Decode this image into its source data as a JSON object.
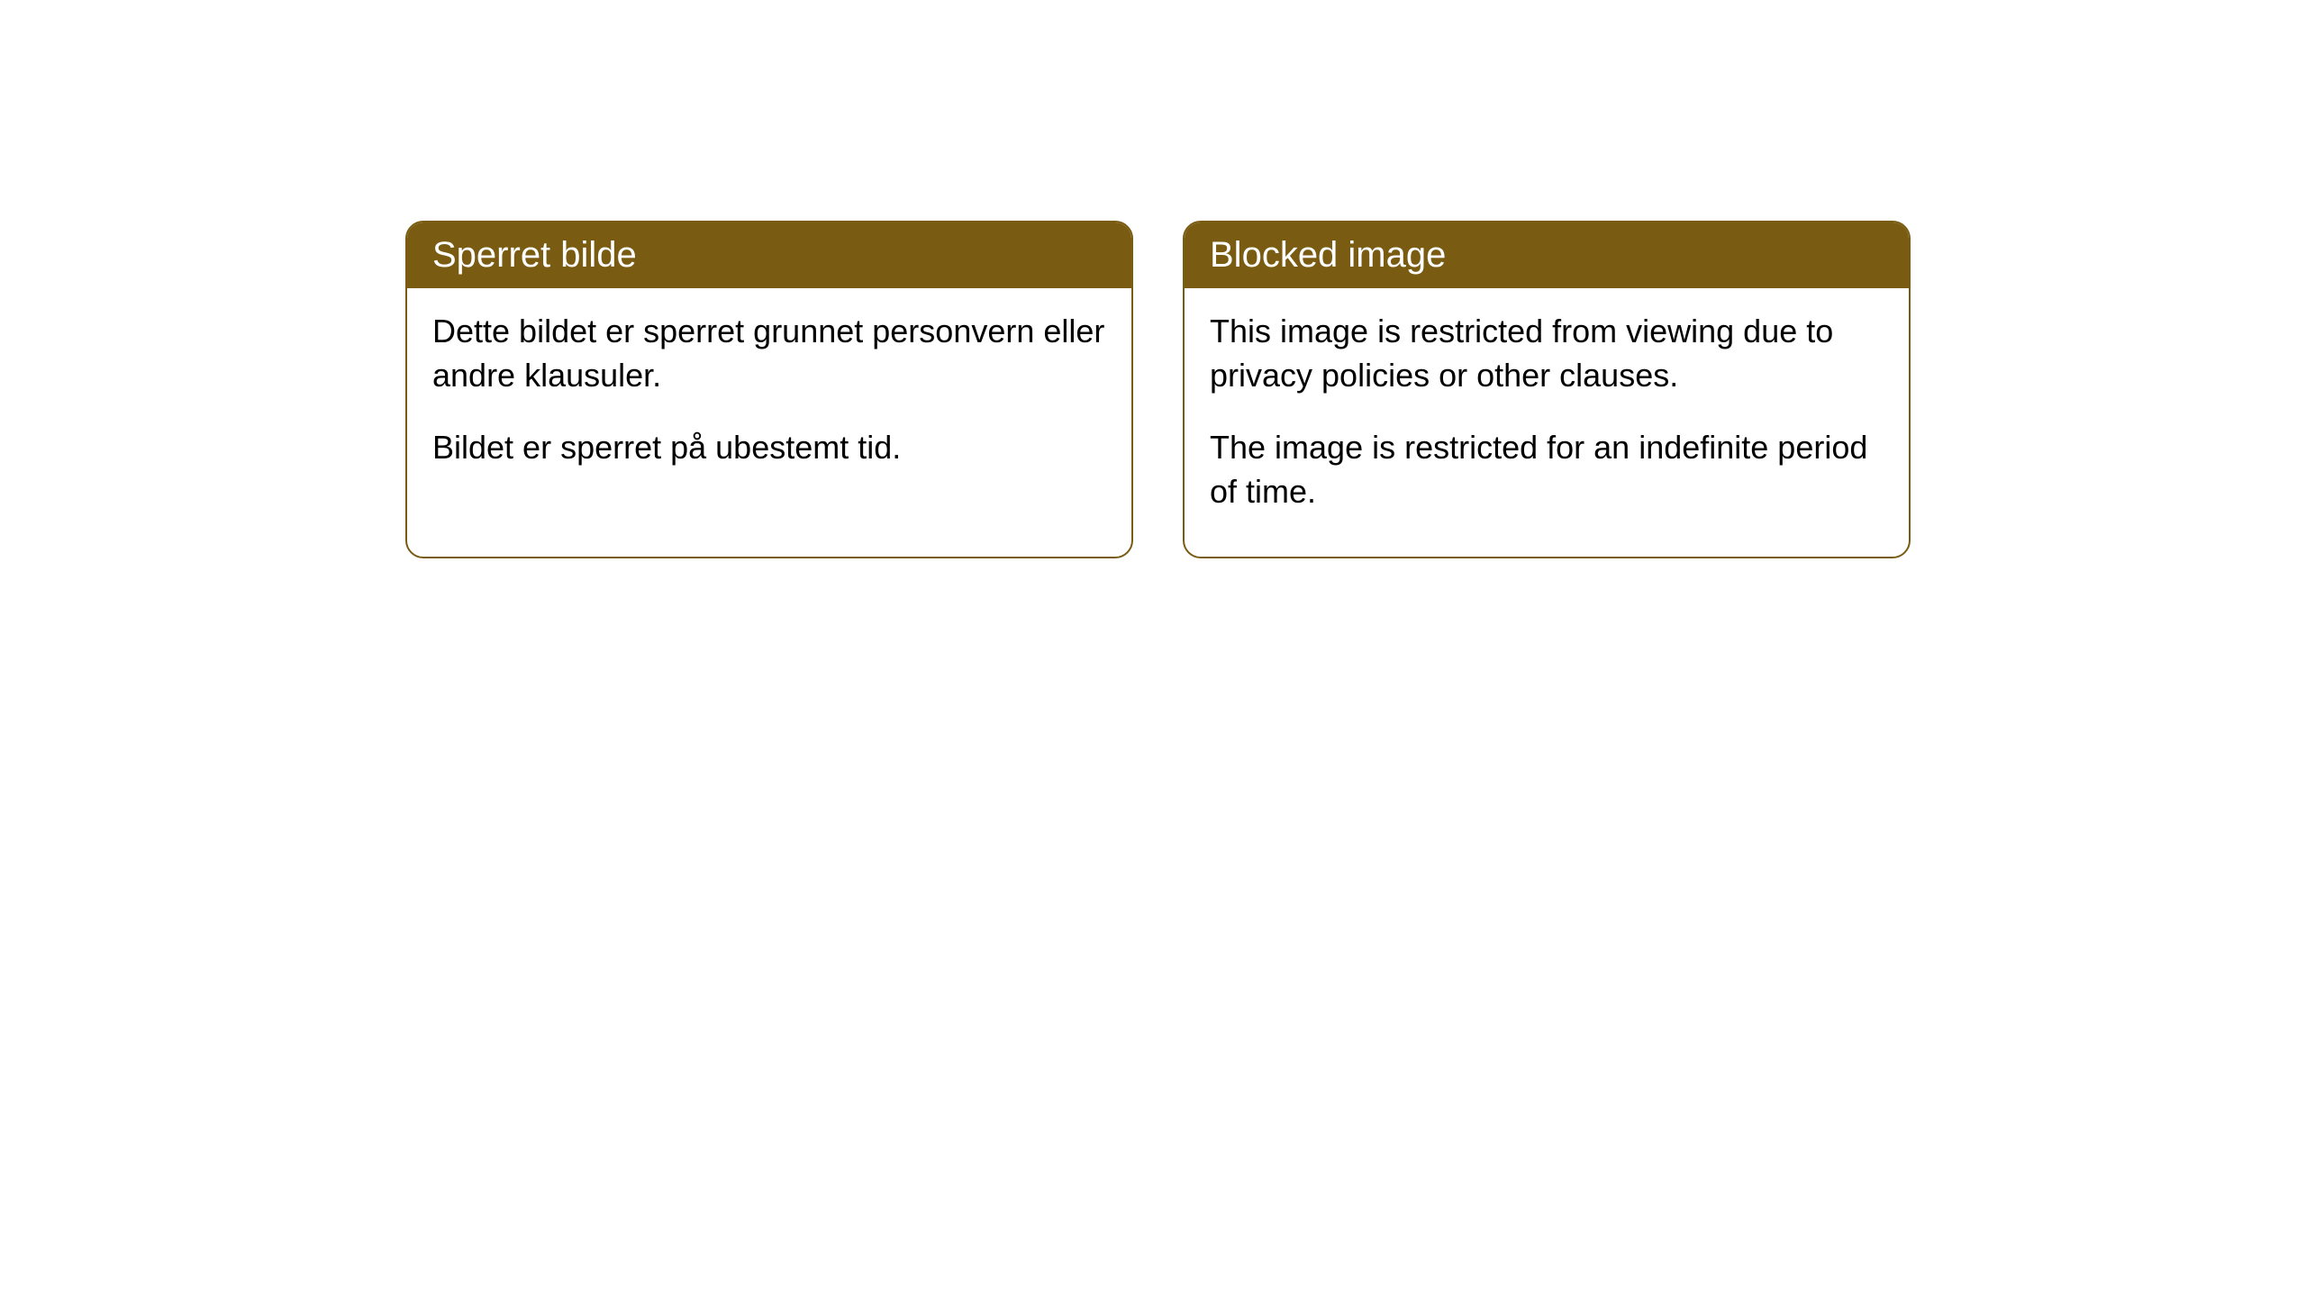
{
  "cards": [
    {
      "title": "Sperret bilde",
      "paragraph1": "Dette bildet er sperret grunnet personvern eller andre klausuler.",
      "paragraph2": "Bildet er sperret på ubestemt tid."
    },
    {
      "title": "Blocked image",
      "paragraph1": "This image is restricted from viewing due to privacy policies or other clauses.",
      "paragraph2": "The image is restricted for an indefinite period of time."
    }
  ],
  "styling": {
    "header_background_color": "#7a5b12",
    "header_text_color": "#ffffff",
    "border_color": "#7a5b12",
    "body_background_color": "#ffffff",
    "body_text_color": "#000000",
    "border_radius": 20,
    "title_fontsize": 40,
    "body_fontsize": 36
  }
}
